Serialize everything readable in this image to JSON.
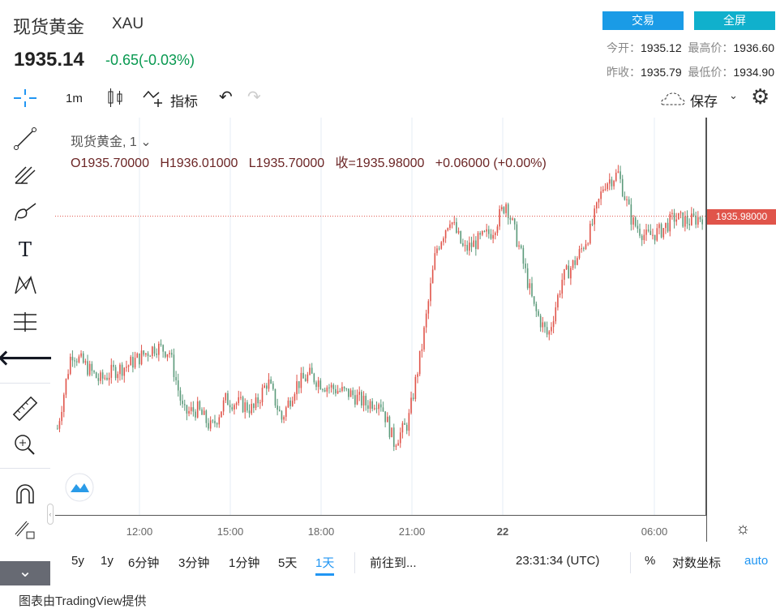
{
  "header": {
    "title": "现货黄金",
    "symbol": "XAU",
    "price": "1935.14",
    "change": "-0.65(-0.03%)",
    "trade_label": "交易",
    "fullscreen_label": "全屏",
    "open_label": "今开：",
    "open": "1935.12",
    "high_label": "最高价：",
    "high": "1936.60",
    "prev_close_label": "昨收：",
    "prev_close": "1935.79",
    "low_label": "最低价：",
    "low": "1934.90"
  },
  "toolbar": {
    "interval": "1m",
    "indicators_label": "指标",
    "save_label": "保存"
  },
  "legend": {
    "title": "现货黄金, 1",
    "open": "O1935.70000",
    "high": "H1936.01000",
    "low": "L1935.70000",
    "close": "收=1935.98000",
    "change": "+0.06000 (+0.00%)"
  },
  "colors": {
    "up": "#e0544a",
    "down": "#5b9a7a",
    "accent": "#2196f3",
    "price_line": "#e0544a"
  },
  "chart_data": {
    "type": "candlestick",
    "last_price_label": "1935.98000",
    "last_price": 1935.98,
    "x_ticks": [
      "12:00",
      "15:00",
      "18:00",
      "21:00",
      "22",
      "06:00"
    ],
    "ylim": [
      1933.8,
      1936.7
    ],
    "approx_close_path": [
      {
        "t": "09:15",
        "v": 1934.43
      },
      {
        "t": "10:00",
        "v": 1934.99
      },
      {
        "t": "10:30",
        "v": 1934.89
      },
      {
        "t": "11:00",
        "v": 1934.78
      },
      {
        "t": "11:30",
        "v": 1934.85
      },
      {
        "t": "12:00",
        "v": 1934.89
      },
      {
        "t": "12:30",
        "v": 1934.96
      },
      {
        "t": "13:00",
        "v": 1935.03
      },
      {
        "t": "13:30",
        "v": 1934.99
      },
      {
        "t": "14:00",
        "v": 1934.54
      },
      {
        "t": "14:30",
        "v": 1934.57
      },
      {
        "t": "15:00",
        "v": 1934.43
      },
      {
        "t": "15:30",
        "v": 1934.64
      },
      {
        "t": "16:00",
        "v": 1934.61
      },
      {
        "t": "16:30",
        "v": 1934.57
      },
      {
        "t": "17:00",
        "v": 1934.78
      },
      {
        "t": "17:30",
        "v": 1934.5
      },
      {
        "t": "18:00",
        "v": 1934.75
      },
      {
        "t": "18:30",
        "v": 1934.82
      },
      {
        "t": "19:00",
        "v": 1934.75
      },
      {
        "t": "19:30",
        "v": 1934.71
      },
      {
        "t": "20:00",
        "v": 1934.68
      },
      {
        "t": "20:30",
        "v": 1934.61
      },
      {
        "t": "21:00",
        "v": 1934.64
      },
      {
        "t": "21:15",
        "v": 1934.33
      },
      {
        "t": "21:30",
        "v": 1934.47
      },
      {
        "t": "21:45",
        "v": 1935.03
      },
      {
        "t": "22:00",
        "v": 1935.73
      },
      {
        "t": "22:30",
        "v": 1935.97
      },
      {
        "t": "23:00",
        "v": 1935.73
      },
      {
        "t": "23:30",
        "v": 1935.8
      },
      {
        "t": "00:00",
        "v": 1935.87
      },
      {
        "t": "00:15",
        "v": 1936.08
      },
      {
        "t": "00:30",
        "v": 1935.73
      },
      {
        "t": "01:00",
        "v": 1935.31
      },
      {
        "t": "01:30",
        "v": 1935.1
      },
      {
        "t": "02:00",
        "v": 1935.52
      },
      {
        "t": "02:30",
        "v": 1935.66
      },
      {
        "t": "03:00",
        "v": 1935.87
      },
      {
        "t": "03:30",
        "v": 1936.22
      },
      {
        "t": "03:45",
        "v": 1936.29
      },
      {
        "t": "04:00",
        "v": 1935.94
      },
      {
        "t": "04:30",
        "v": 1935.83
      },
      {
        "t": "05:00",
        "v": 1935.87
      },
      {
        "t": "05:30",
        "v": 1935.97
      },
      {
        "t": "06:00",
        "v": 1935.94
      },
      {
        "t": "07:00",
        "v": 1935.98
      }
    ]
  },
  "bottom": {
    "ranges": [
      "5y",
      "1y",
      "6分钟",
      "3分钟",
      "1分钟",
      "5天",
      "1天"
    ],
    "active_range": "1天",
    "goto": "前往到...",
    "clock": "23:31:34 (UTC)",
    "percent": "%",
    "log": "对数坐标",
    "auto": "auto"
  },
  "footer": "图表由TradingView提供"
}
